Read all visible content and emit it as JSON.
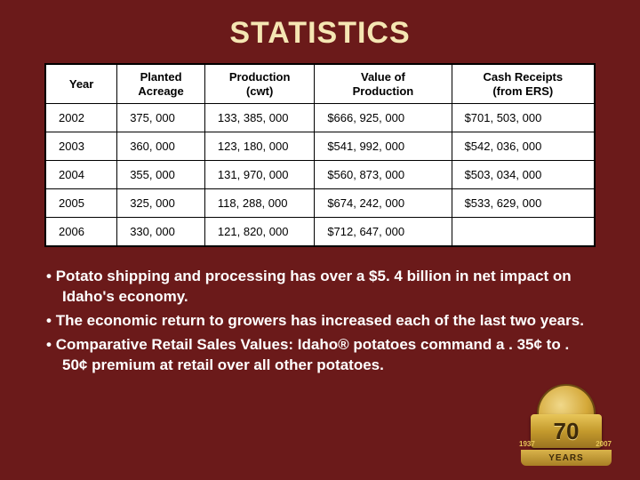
{
  "title": "STATISTICS",
  "table": {
    "columns": [
      "Year",
      "Planted\nAcreage",
      "Production\n(cwt)",
      "Value of\nProduction",
      "Cash Receipts\n(from ERS)"
    ],
    "rows": [
      [
        "2002",
        "375, 000",
        "133, 385, 000",
        "$666, 925, 000",
        "$701, 503, 000"
      ],
      [
        "2003",
        "360, 000",
        "123, 180, 000",
        "$541, 992, 000",
        "$542, 036, 000"
      ],
      [
        "2004",
        "355, 000",
        "131, 970, 000",
        "$560, 873, 000",
        "$503, 034, 000"
      ],
      [
        "2005",
        "325, 000",
        "118, 288, 000",
        "$674, 242, 000",
        "$533, 629, 000"
      ],
      [
        "2006",
        "330, 000",
        "121, 820, 000",
        "$712, 647, 000",
        ""
      ]
    ]
  },
  "bullets": [
    "Potato shipping and processing has over a $5. 4 billion in net impact on Idaho's economy.",
    "The economic return to growers has increased each of the last two years.",
    "Comparative Retail Sales Values:  Idaho® potatoes command a . 35¢ to . 50¢ premium at retail over all other potatoes."
  ],
  "logo": {
    "big_number": "70",
    "ribbon_text": "YEARS",
    "year_left": "1937",
    "year_right": "2007"
  },
  "colors": {
    "background": "#6b1a1a",
    "title_color": "#f5e6b3",
    "table_bg": "#ffffff",
    "text_white": "#ffffff",
    "gold_light": "#e8c659",
    "gold_dark": "#a87f25"
  }
}
